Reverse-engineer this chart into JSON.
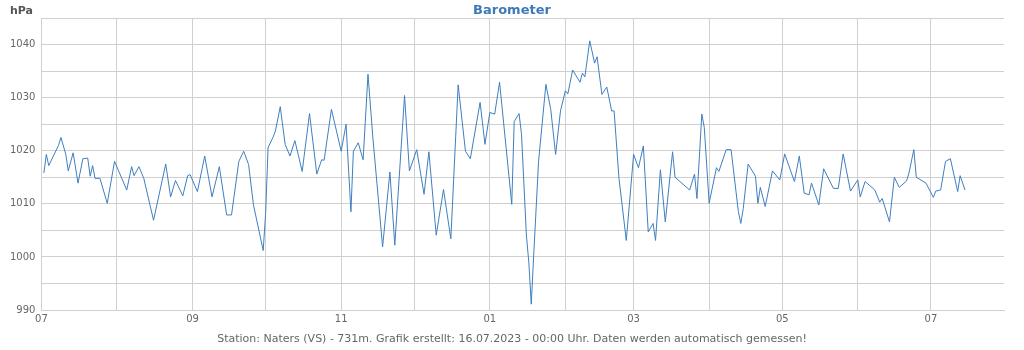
{
  "chart_data": {
    "type": "line",
    "title": "Barometer",
    "ylabel": "hPa",
    "annotations": [
      "Station: Naters (VS) - 731m. Grafik erstellt: 16.07.2023 - 00:00 Uhr. Daten werden automatisch gemessen!"
    ],
    "x": [
      "2022-07-02",
      "2022-07-03",
      "2022-07-04",
      "2022-07-08",
      "2022-07-09",
      "2022-07-11",
      "2022-07-12",
      "2022-07-14",
      "2022-07-16",
      "2022-07-18",
      "2022-07-20",
      "2022-07-21",
      "2022-07-22",
      "2022-07-23",
      "2022-07-25",
      "2022-07-28",
      "2022-07-31",
      "2022-08-05",
      "2022-08-07",
      "2022-08-08",
      "2022-08-10",
      "2022-08-12",
      "2022-08-16",
      "2022-08-21",
      "2022-08-23",
      "2022-08-25",
      "2022-08-28",
      "2022-08-30",
      "2022-08-31",
      "2022-09-03",
      "2022-09-06",
      "2022-09-09",
      "2022-09-12",
      "2022-09-15",
      "2022-09-17",
      "2022-09-20",
      "2022-09-22",
      "2022-09-24",
      "2022-09-26",
      "2022-09-30",
      "2022-10-01",
      "2022-10-02",
      "2022-10-04",
      "2022-10-05",
      "2022-10-07",
      "2022-10-09",
      "2022-10-11",
      "2022-10-13",
      "2022-10-16",
      "2022-10-19",
      "2022-10-22",
      "2022-10-24",
      "2022-10-25",
      "2022-10-28",
      "2022-11-01",
      "2022-11-03",
      "2022-11-05",
      "2022-11-06",
      "2022-11-08",
      "2022-11-10",
      "2022-11-12",
      "2022-11-14",
      "2022-11-18",
      "2022-11-21",
      "2022-11-23",
      "2022-11-27",
      "2022-11-29",
      "2022-12-02",
      "2022-12-05",
      "2022-12-07",
      "2022-12-10",
      "2022-12-13",
      "2022-12-16",
      "2022-12-19",
      "2022-12-22",
      "2022-12-24",
      "2022-12-28",
      "2022-12-30",
      "2023-01-01",
      "2023-01-03",
      "2023-01-05",
      "2023-01-10",
      "2023-01-11",
      "2023-01-13",
      "2023-01-14",
      "2023-01-16",
      "2023-01-17",
      "2023-01-18",
      "2023-01-19",
      "2023-01-21",
      "2023-01-24",
      "2023-01-26",
      "2023-01-28",
      "2023-01-30",
      "2023-02-01",
      "2023-02-02",
      "2023-02-04",
      "2023-02-07",
      "2023-02-08",
      "2023-02-09",
      "2023-02-11",
      "2023-02-13",
      "2023-02-14",
      "2023-02-16",
      "2023-02-18",
      "2023-02-20",
      "2023-02-21",
      "2023-02-23",
      "2023-02-26",
      "2023-03-01",
      "2023-03-03",
      "2023-03-05",
      "2023-03-07",
      "2023-03-09",
      "2023-03-10",
      "2023-03-12",
      "2023-03-14",
      "2023-03-17",
      "2023-03-18",
      "2023-03-24",
      "2023-03-26",
      "2023-03-27",
      "2023-03-29",
      "2023-03-30",
      "2023-04-01",
      "2023-04-04",
      "2023-04-05",
      "2023-04-08",
      "2023-04-10",
      "2023-04-13",
      "2023-04-14",
      "2023-04-15",
      "2023-04-17",
      "2023-04-20",
      "2023-04-21",
      "2023-04-22",
      "2023-04-24",
      "2023-04-27",
      "2023-04-30",
      "2023-05-02",
      "2023-05-06",
      "2023-05-08",
      "2023-05-10",
      "2023-05-12",
      "2023-05-13",
      "2023-05-16",
      "2023-05-18",
      "2023-05-22",
      "2023-05-24",
      "2023-05-26",
      "2023-05-29",
      "2023-06-01",
      "2023-06-02",
      "2023-06-04",
      "2023-06-08",
      "2023-06-10",
      "2023-06-11",
      "2023-06-14",
      "2023-06-16",
      "2023-06-18",
      "2023-06-21",
      "2023-06-22",
      "2023-06-24",
      "2023-06-25",
      "2023-06-29",
      "2023-07-02",
      "2023-07-03",
      "2023-07-05",
      "2023-07-07",
      "2023-07-09",
      "2023-07-12",
      "2023-07-13",
      "2023-07-15"
    ],
    "series": [
      {
        "color": "#3f7fbf",
        "values": [
          1015.8,
          1019.3,
          1017.2,
          1021.0,
          1022.5,
          1019.3,
          1016.2,
          1019.6,
          1013.9,
          1018.5,
          1018.6,
          1015.2,
          1017.2,
          1014.8,
          1014.8,
          1010.1,
          1018.0,
          1012.6,
          1017.0,
          1015.3,
          1017.0,
          1014.8,
          1006.9,
          1017.5,
          1011.3,
          1014.4,
          1011.5,
          1015.3,
          1015.5,
          1012.3,
          1019.0,
          1011.3,
          1017.0,
          1007.9,
          1007.9,
          1018.0,
          1019.9,
          1017.4,
          1009.8,
          1001.2,
          1008.2,
          1020.6,
          1022.5,
          1023.7,
          1028.3,
          1021.2,
          1019.0,
          1021.9,
          1016.1,
          1027.0,
          1015.6,
          1018.3,
          1018.2,
          1027.8,
          1019.9,
          1025.0,
          1008.5,
          1019.9,
          1021.5,
          1018.3,
          1034.4,
          1022.5,
          1001.9,
          1016.0,
          1002.2,
          1030.4,
          1016.2,
          1020.2,
          1011.8,
          1019.8,
          1004.1,
          1012.7,
          1003.4,
          1032.4,
          1019.9,
          1018.5,
          1029.1,
          1021.2,
          1027.2,
          1026.9,
          1032.9,
          1009.9,
          1025.5,
          1027.0,
          1023.1,
          1004.1,
          999.0,
          991.1,
          1000.3,
          1018.0,
          1032.5,
          1027.8,
          1019.3,
          1027.5,
          1031.3,
          1030.7,
          1035.2,
          1032.9,
          1034.6,
          1033.9,
          1040.7,
          1036.5,
          1037.7,
          1030.6,
          1032.0,
          1027.5,
          1027.5,
          1014.8,
          1003.1,
          1019.3,
          1016.8,
          1020.9,
          1004.7,
          1006.3,
          1003.1,
          1016.4,
          1006.6,
          1019.8,
          1015.0,
          1012.6,
          1015.6,
          1011.0,
          1026.9,
          1024.4,
          1010.1,
          1016.8,
          1016.1,
          1020.2,
          1020.2,
          1008.5,
          1006.3,
          1009.1,
          1017.5,
          1015.2,
          1010.1,
          1013.1,
          1009.5,
          1016.2,
          1014.5,
          1019.4,
          1014.2,
          1019.0,
          1012.0,
          1011.7,
          1013.9,
          1009.8,
          1016.6,
          1012.9,
          1012.9,
          1019.4,
          1012.4,
          1014.5,
          1011.3,
          1014.2,
          1012.6,
          1010.3,
          1011.0,
          1006.6,
          1015.0,
          1013.1,
          1014.3,
          1015.8,
          1020.2,
          1015.0,
          1013.9,
          1011.2,
          1012.4,
          1012.6,
          1018.0,
          1018.5,
          1012.3,
          1015.3,
          1012.6
        ]
      }
    ],
    "xlim": [
      "2022-07-01",
      "2023-07-31"
    ],
    "xticks": [
      {
        "value": "2022-07-01",
        "label": "07"
      },
      {
        "value": "2022-08-01",
        "label": null
      },
      {
        "value": "2022-09-01",
        "label": "09"
      },
      {
        "value": "2022-10-01",
        "label": null
      },
      {
        "value": "2022-11-01",
        "label": "11"
      },
      {
        "value": "2022-12-01",
        "label": null
      },
      {
        "value": "2023-01-01",
        "label": "01"
      },
      {
        "value": "2023-02-01",
        "label": null
      },
      {
        "value": "2023-03-01",
        "label": "03"
      },
      {
        "value": "2023-04-01",
        "label": null
      },
      {
        "value": "2023-05-01",
        "label": "05"
      },
      {
        "value": "2023-06-01",
        "label": null
      },
      {
        "value": "2023-07-01",
        "label": "07"
      }
    ],
    "ylim": [
      990,
      1045
    ],
    "yticks": [
      990,
      {
        "value": 995,
        "label": null
      },
      1000,
      {
        "value": 1005,
        "label": null
      },
      1010,
      {
        "value": 1015,
        "label": null
      },
      1020,
      {
        "value": 1025,
        "label": null
      },
      1030,
      {
        "value": 1035,
        "label": null
      },
      1040,
      {
        "value": 1045,
        "label": null
      }
    ],
    "grid": true,
    "legend": false,
    "marker": "none",
    "line_style": "solid"
  }
}
